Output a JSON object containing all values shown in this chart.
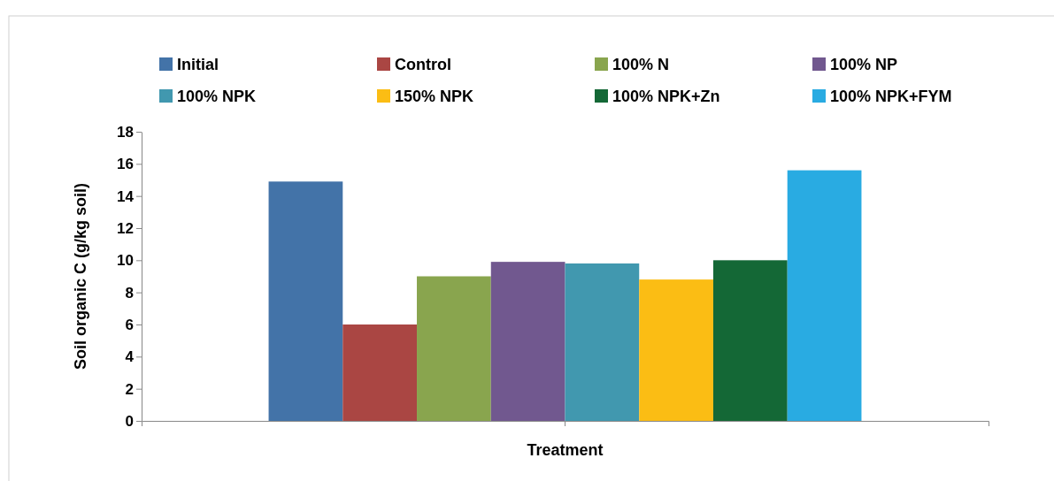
{
  "chart_data": {
    "type": "bar",
    "xlabel": "Treatment",
    "ylabel": "Soil organic C (g/kg soil)",
    "categories": [
      null
    ],
    "series": [
      {
        "name": "Initial",
        "color": "#4373a8",
        "values": [
          14.9
        ]
      },
      {
        "name": "Control",
        "color": "#aa4643",
        "values": [
          6.0
        ]
      },
      {
        "name": "100% N",
        "color": "#89a54e",
        "values": [
          9.0
        ]
      },
      {
        "name": "100% NP",
        "color": "#71588f",
        "values": [
          9.9
        ]
      },
      {
        "name": "100% NPK",
        "color": "#4198af",
        "values": [
          9.8
        ]
      },
      {
        "name": "150% NPK",
        "color": "#fbbd14",
        "values": [
          8.8
        ]
      },
      {
        "name": "100% NPK+Zn",
        "color": "#146836",
        "values": [
          10.0
        ]
      },
      {
        "name": "100% NPK+FYM",
        "color": "#29abe2",
        "values": [
          15.6
        ]
      }
    ],
    "ylim": [
      0,
      18
    ],
    "yticks": [
      0,
      2,
      4,
      6,
      8,
      10,
      12,
      14,
      16,
      18
    ],
    "grid": false,
    "legend": "top"
  }
}
